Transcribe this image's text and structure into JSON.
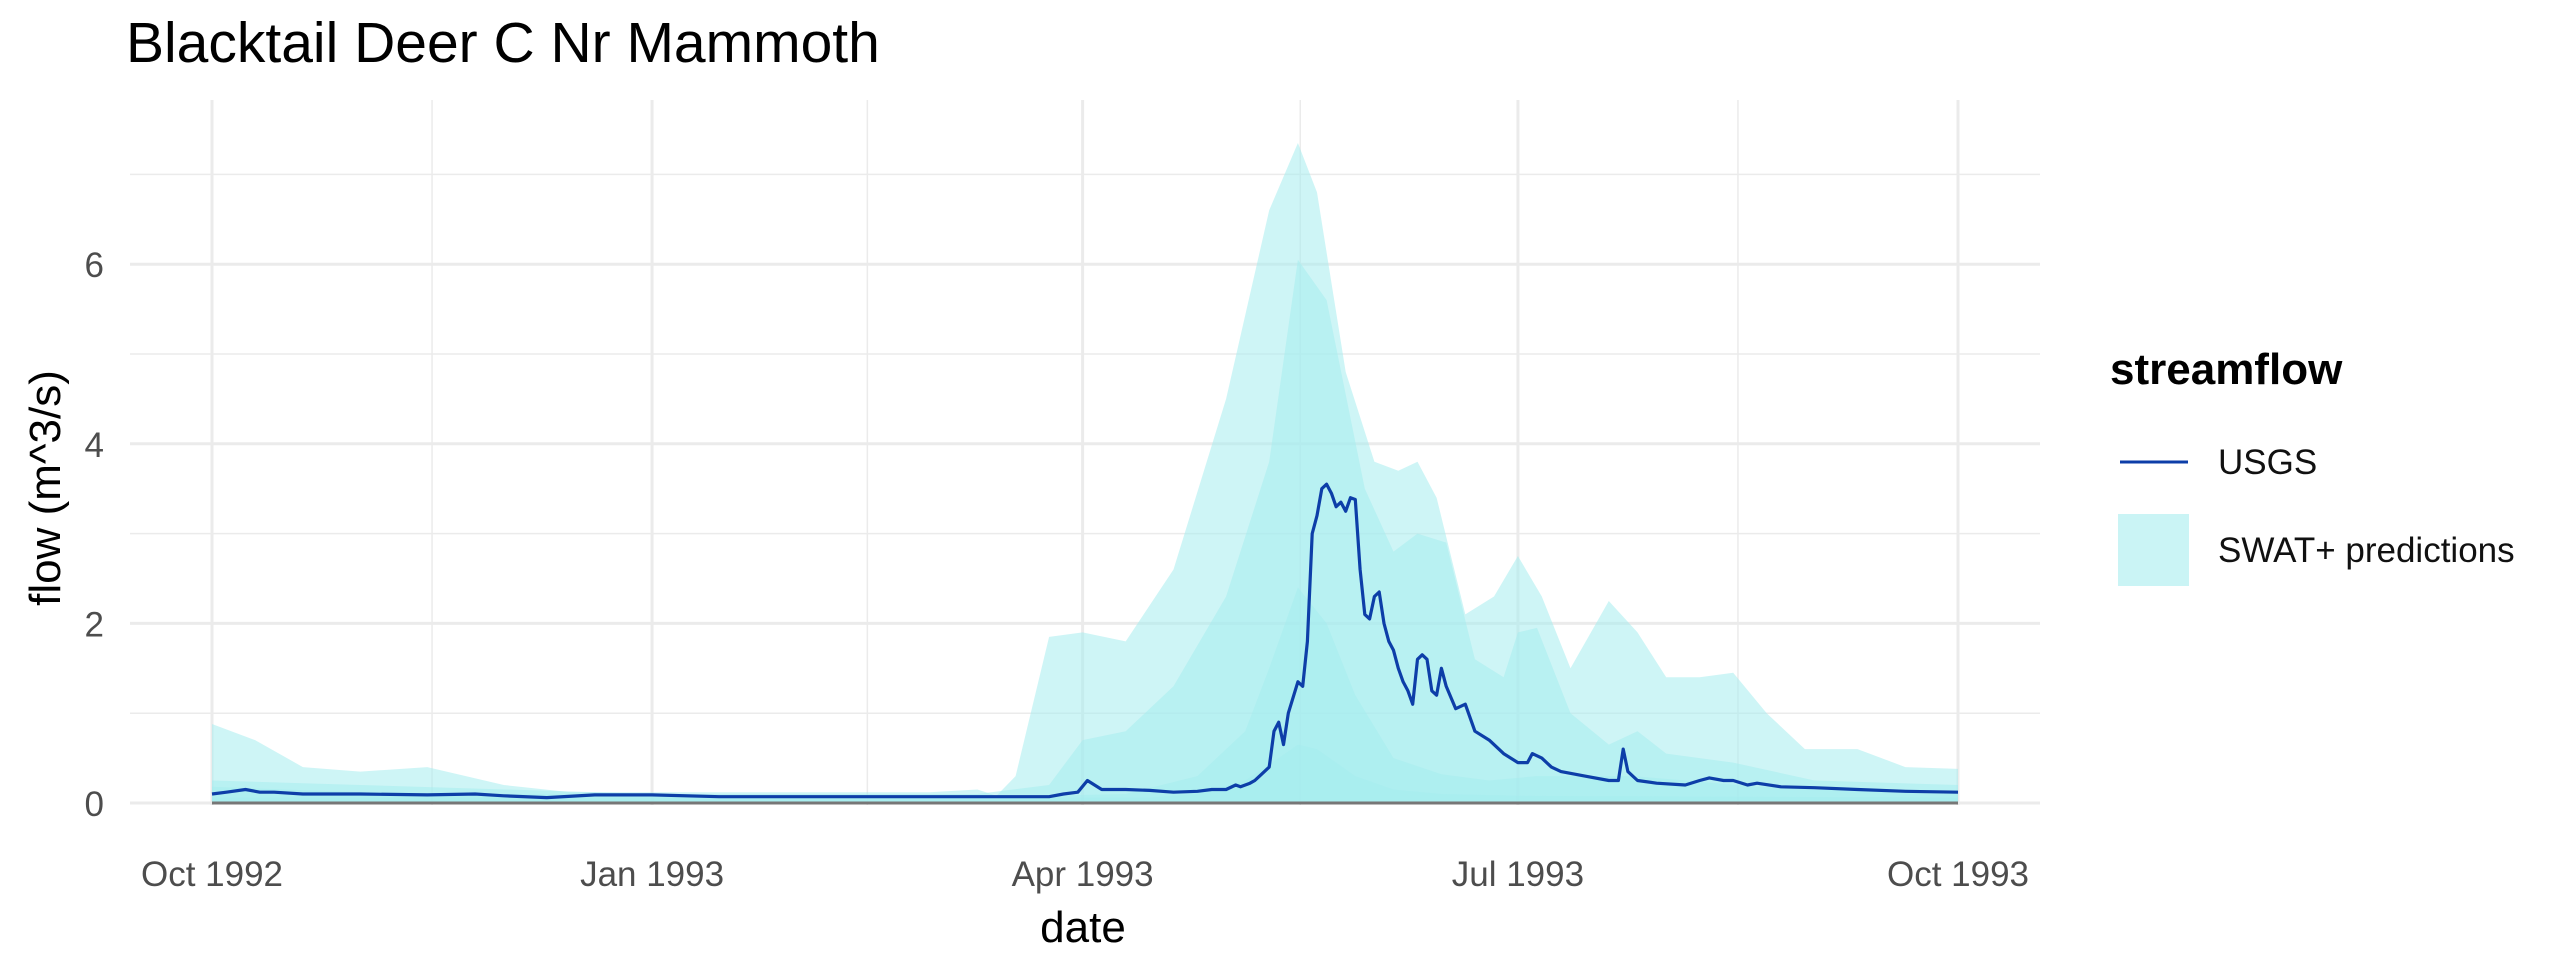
{
  "chart_data": {
    "type": "area",
    "title": "Blacktail Deer C Nr Mammoth",
    "xlabel": "date",
    "ylabel": "flow (m^3/s)",
    "x_type": "date",
    "xlim": [
      "1992-10-01",
      "1993-10-01"
    ],
    "ylim": [
      0,
      7.45
    ],
    "x_ticks": [
      "1992-10-01",
      "1993-01-01",
      "1993-04-01",
      "1993-07-01",
      "1993-10-01"
    ],
    "x_tick_labels": [
      "Oct 1992",
      "Jan 1993",
      "Apr 1993",
      "Jul 1993",
      "Oct 1993"
    ],
    "y_ticks": [
      0,
      2,
      4,
      6
    ],
    "y_tick_labels": [
      "0",
      "2",
      "4",
      "6"
    ],
    "grid": true,
    "legend": {
      "title": "streamflow",
      "position": "right"
    },
    "colors": {
      "usgs_line": "#0d3ea8",
      "swat_band": "#a6ecee",
      "zero_line": "#777777",
      "grid": "#ebebeb"
    },
    "series": [
      {
        "name": "SWAT+ predictions",
        "kind": "band",
        "color": "#a6ecee",
        "bands": [
          {
            "x": [
              "1992-10-01",
              "1992-10-10",
              "1992-10-20",
              "1992-11-01",
              "1992-11-15",
              "1992-12-01",
              "1992-12-15",
              "1993-01-01",
              "1993-01-20",
              "1993-02-10",
              "1993-02-28",
              "1993-03-10",
              "1993-03-14",
              "1993-03-18",
              "1993-03-25",
              "1993-04-01",
              "1993-04-10",
              "1993-04-20",
              "1993-05-01",
              "1993-05-10",
              "1993-05-16",
              "1993-05-20",
              "1993-05-26",
              "1993-06-01",
              "1993-06-06",
              "1993-06-10",
              "1993-06-14",
              "1993-06-20",
              "1993-06-26",
              "1993-07-01",
              "1993-07-06",
              "1993-07-12",
              "1993-07-20",
              "1993-07-26",
              "1993-08-01",
              "1993-08-08",
              "1993-08-15",
              "1993-08-22",
              "1993-08-30",
              "1993-09-10",
              "1993-09-20",
              "1993-10-01"
            ],
            "lower": [
              0,
              0,
              0,
              0,
              0,
              0,
              0,
              0,
              0,
              0,
              0,
              0,
              0,
              0,
              0,
              0,
              0,
              0,
              0,
              0,
              0,
              0,
              0,
              0,
              0,
              0,
              0,
              0,
              0,
              0,
              0,
              0,
              0,
              0,
              0,
              0,
              0,
              0,
              0,
              0,
              0,
              0
            ],
            "upper": [
              0.88,
              0.7,
              0.4,
              0.35,
              0.4,
              0.2,
              0.12,
              0.12,
              0.12,
              0.12,
              0.12,
              0.15,
              0.08,
              0.3,
              1.85,
              1.9,
              1.8,
              2.6,
              4.5,
              6.6,
              7.35,
              6.8,
              4.8,
              3.8,
              3.7,
              3.8,
              3.4,
              2.1,
              2.3,
              2.75,
              2.3,
              1.5,
              2.25,
              1.9,
              1.4,
              1.4,
              1.45,
              1.0,
              0.6,
              0.6,
              0.4,
              0.38
            ]
          },
          {
            "x": [
              "1992-10-01",
              "1992-11-01",
              "1993-01-01",
              "1993-03-10",
              "1993-03-25",
              "1993-04-01",
              "1993-04-10",
              "1993-04-20",
              "1993-05-01",
              "1993-05-10",
              "1993-05-16",
              "1993-05-22",
              "1993-05-30",
              "1993-06-05",
              "1993-06-10",
              "1993-06-16",
              "1993-06-22",
              "1993-06-28",
              "1993-07-01",
              "1993-07-05",
              "1993-07-12",
              "1993-07-20",
              "1993-07-26",
              "1993-08-01",
              "1993-08-15",
              "1993-09-01",
              "1993-10-01"
            ],
            "lower": [
              0,
              0,
              0,
              0,
              0,
              0,
              0,
              0,
              0,
              0,
              0,
              0,
              0,
              0,
              0,
              0,
              0,
              0,
              0,
              0,
              0,
              0,
              0,
              0,
              0,
              0,
              0
            ],
            "upper": [
              0.25,
              0.2,
              0.1,
              0.1,
              0.2,
              0.7,
              0.8,
              1.3,
              2.3,
              3.8,
              6.05,
              5.6,
              3.5,
              2.8,
              3.0,
              2.9,
              1.6,
              1.4,
              1.9,
              1.95,
              1.0,
              0.65,
              0.8,
              0.55,
              0.45,
              0.25,
              0.2
            ]
          },
          {
            "x": [
              "1992-10-01",
              "1992-11-01",
              "1993-01-01",
              "1993-03-25",
              "1993-04-10",
              "1993-04-25",
              "1993-05-05",
              "1993-05-10",
              "1993-05-16",
              "1993-05-22",
              "1993-05-28",
              "1993-06-05",
              "1993-06-15",
              "1993-06-25",
              "1993-07-05",
              "1993-07-15",
              "1993-07-25",
              "1993-08-05",
              "1993-08-20",
              "1993-09-10",
              "1993-10-01"
            ],
            "lower": [
              0,
              0,
              0,
              0,
              0,
              0,
              0,
              0,
              0,
              0,
              0,
              0,
              0,
              0,
              0,
              0,
              0,
              0,
              0,
              0,
              0
            ],
            "upper": [
              0.18,
              0.12,
              0.08,
              0.08,
              0.1,
              0.3,
              0.8,
              1.5,
              2.4,
              2.0,
              1.2,
              0.5,
              0.32,
              0.25,
              0.3,
              0.3,
              0.3,
              0.25,
              0.18,
              0.15,
              0.12
            ]
          },
          {
            "x": [
              "1992-10-01",
              "1993-04-15",
              "1993-04-25",
              "1993-05-05",
              "1993-05-12",
              "1993-05-16",
              "1993-05-20",
              "1993-05-28",
              "1993-06-05",
              "1993-06-15",
              "1993-07-01",
              "1993-10-01"
            ],
            "lower": [
              0,
              0,
              0,
              0,
              0,
              0,
              0,
              0,
              0,
              0,
              0,
              0
            ],
            "upper": [
              0.06,
              0.06,
              0.1,
              0.25,
              0.5,
              0.65,
              0.6,
              0.3,
              0.15,
              0.1,
              0.08,
              0.06
            ]
          }
        ]
      },
      {
        "name": "USGS",
        "kind": "line",
        "color": "#0d3ea8",
        "x": [
          "1992-10-01",
          "1992-10-04",
          "1992-10-08",
          "1992-10-11",
          "1992-10-14",
          "1992-10-20",
          "1992-11-01",
          "1992-11-15",
          "1992-11-25",
          "1992-12-01",
          "1992-12-10",
          "1992-12-20",
          "1993-01-01",
          "1993-01-15",
          "1993-02-01",
          "1993-02-15",
          "1993-03-01",
          "1993-03-15",
          "1993-03-25",
          "1993-03-28",
          "1993-03-31",
          "1993-04-02",
          "1993-04-05",
          "1993-04-10",
          "1993-04-15",
          "1993-04-20",
          "1993-04-25",
          "1993-04-28",
          "1993-05-01",
          "1993-05-03",
          "1993-05-04",
          "1993-05-06",
          "1993-05-07",
          "1993-05-08",
          "1993-05-10",
          "1993-05-11",
          "1993-05-12",
          "1993-05-13",
          "1993-05-14",
          "1993-05-16",
          "1993-05-17",
          "1993-05-18",
          "1993-05-19",
          "1993-05-20",
          "1993-05-21",
          "1993-05-22",
          "1993-05-23",
          "1993-05-24",
          "1993-05-25",
          "1993-05-26",
          "1993-05-27",
          "1993-05-28",
          "1993-05-29",
          "1993-05-30",
          "1993-05-31",
          "1993-06-01",
          "1993-06-02",
          "1993-06-03",
          "1993-06-04",
          "1993-06-05",
          "1993-06-06",
          "1993-06-07",
          "1993-06-08",
          "1993-06-09",
          "1993-06-10",
          "1993-06-11",
          "1993-06-12",
          "1993-06-13",
          "1993-06-14",
          "1993-06-15",
          "1993-06-16",
          "1993-06-18",
          "1993-06-20",
          "1993-06-22",
          "1993-06-25",
          "1993-06-28",
          "1993-07-01",
          "1993-07-03",
          "1993-07-04",
          "1993-07-06",
          "1993-07-08",
          "1993-07-10",
          "1993-07-15",
          "1993-07-20",
          "1993-07-22",
          "1993-07-23",
          "1993-07-24",
          "1993-07-26",
          "1993-07-30",
          "1993-08-05",
          "1993-08-08",
          "1993-08-10",
          "1993-08-13",
          "1993-08-15",
          "1993-08-18",
          "1993-08-20",
          "1993-08-25",
          "1993-09-01",
          "1993-09-10",
          "1993-09-20",
          "1993-10-01"
        ],
        "y": [
          0.1,
          0.12,
          0.15,
          0.12,
          0.12,
          0.1,
          0.1,
          0.09,
          0.1,
          0.08,
          0.06,
          0.09,
          0.09,
          0.07,
          0.07,
          0.07,
          0.07,
          0.07,
          0.07,
          0.1,
          0.12,
          0.25,
          0.15,
          0.15,
          0.14,
          0.12,
          0.13,
          0.15,
          0.15,
          0.2,
          0.18,
          0.22,
          0.25,
          0.3,
          0.4,
          0.8,
          0.9,
          0.65,
          1.0,
          1.35,
          1.3,
          1.8,
          3.0,
          3.2,
          3.5,
          3.55,
          3.45,
          3.3,
          3.35,
          3.25,
          3.4,
          3.38,
          2.6,
          2.1,
          2.05,
          2.3,
          2.35,
          2.0,
          1.8,
          1.7,
          1.5,
          1.35,
          1.25,
          1.1,
          1.6,
          1.65,
          1.6,
          1.25,
          1.2,
          1.5,
          1.3,
          1.05,
          1.1,
          0.8,
          0.7,
          0.55,
          0.45,
          0.45,
          0.55,
          0.5,
          0.4,
          0.35,
          0.3,
          0.25,
          0.25,
          0.6,
          0.35,
          0.25,
          0.22,
          0.2,
          0.25,
          0.28,
          0.25,
          0.25,
          0.2,
          0.22,
          0.18,
          0.17,
          0.15,
          0.13,
          0.12
        ]
      }
    ]
  }
}
